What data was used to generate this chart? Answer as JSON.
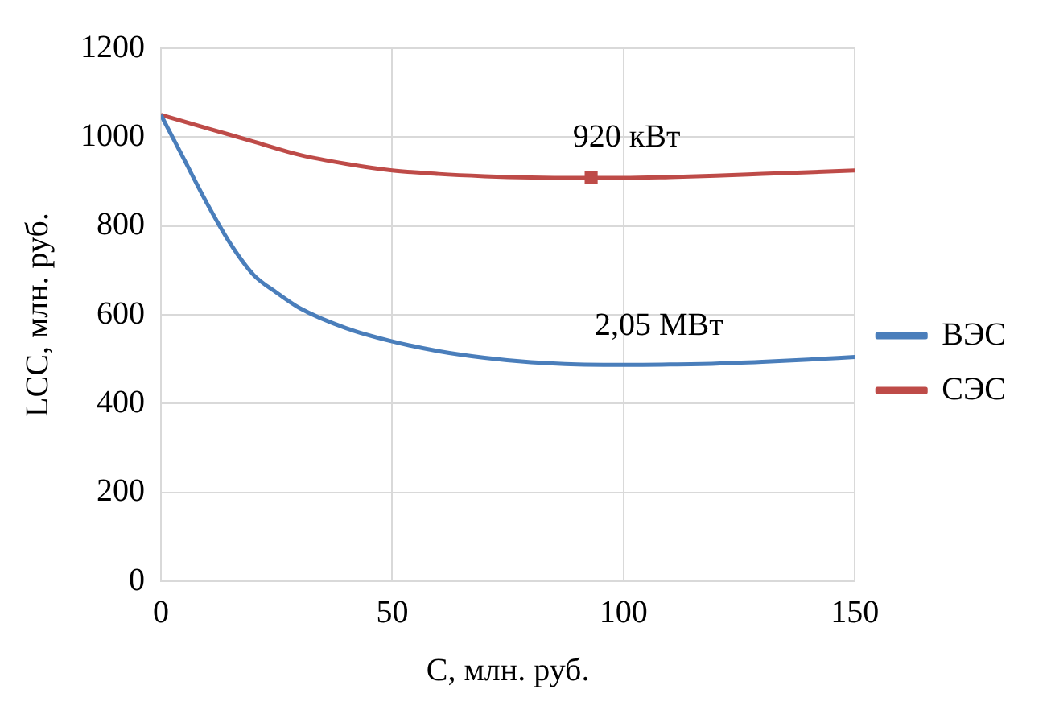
{
  "chart_data": {
    "type": "line",
    "xlabel": "C, млн. руб.",
    "ylabel": "LCC, млн. руб.",
    "xlim": [
      0,
      150
    ],
    "xticks": [
      0,
      50,
      100,
      150
    ],
    "ylim": [
      0,
      1200
    ],
    "yticks": [
      0,
      200,
      400,
      600,
      800,
      1000,
      1200
    ],
    "grid": true,
    "legend": "right",
    "marker": "none",
    "line_style": "solid",
    "series": [
      {
        "name": "ВЭС",
        "color": "#4a7ebb",
        "x": [
          0,
          5,
          10,
          15,
          20,
          25,
          30,
          40,
          50,
          60,
          70,
          80,
          90,
          100,
          110,
          120,
          130,
          140,
          150
        ],
        "values": [
          1050,
          950,
          850,
          760,
          690,
          650,
          615,
          570,
          540,
          518,
          503,
          493,
          488,
          487,
          488,
          490,
          494,
          499,
          505
        ]
      },
      {
        "name": "СЭС",
        "color": "#be4b48",
        "x": [
          0,
          10,
          20,
          30,
          40,
          50,
          60,
          70,
          80,
          90,
          100,
          110,
          120,
          130,
          140,
          150
        ],
        "values": [
          1050,
          1020,
          990,
          960,
          940,
          925,
          917,
          912,
          909,
          908,
          908,
          910,
          913,
          917,
          921,
          925
        ]
      },
      {
        "type": "scatter",
        "marker": "square",
        "color": "#be4b48",
        "x": [
          93
        ],
        "values": [
          910
        ]
      }
    ],
    "annotations": [
      {
        "text": "920 кВт",
        "x": 93,
        "y": 910
      },
      {
        "text": "2,05 МВт",
        "x": 100,
        "y": 487
      }
    ]
  }
}
